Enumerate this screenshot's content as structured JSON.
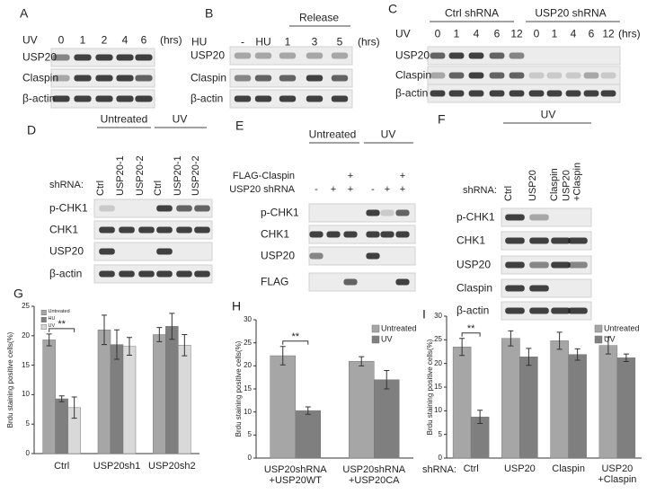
{
  "panels": [
    {
      "label": "A",
      "treatment": "UV",
      "columns": [
        "0",
        "1",
        "2",
        "4",
        "6"
      ],
      "unit": "(hrs)",
      "rows": [
        "USP20",
        "Claspin",
        "β-actin"
      ]
    },
    {
      "label": "B",
      "treatment": "HU",
      "group": "Release",
      "columns": [
        "-",
        "HU",
        "1",
        "3",
        "5"
      ],
      "unit": "(hrs)",
      "rows": [
        "USP20",
        "Claspin",
        "β-actin"
      ]
    },
    {
      "label": "C",
      "treatment": "UV",
      "groups": [
        "Ctrl shRNA",
        "USP20 shRNA"
      ],
      "columns": [
        "0",
        "1",
        "4",
        "6",
        "12",
        "0",
        "1",
        "4",
        "6",
        "12"
      ],
      "unit": "(hrs)",
      "rows": [
        "USP20",
        "Claspin",
        "β-actin"
      ]
    },
    {
      "label": "D",
      "groups": [
        "Untreated",
        "UV"
      ],
      "row_header": "shRNA:",
      "columns": [
        "Ctrl",
        "USP20-1",
        "USP20-2",
        "Ctrl",
        "USP20-1",
        "USP20-2"
      ],
      "rows": [
        "p-CHK1",
        "CHK1",
        "USP20",
        "β-actin"
      ]
    },
    {
      "label": "E",
      "groups": [
        "Untreated",
        "UV"
      ],
      "conditions": [
        {
          "name": "FLAG-Claspin",
          "marks": [
            "+",
            "+"
          ]
        },
        {
          "name": "USP20 shRNA",
          "marks": [
            "-",
            "+",
            "+",
            "-",
            "+",
            "+"
          ]
        }
      ],
      "rows": [
        "p-CHK1",
        "CHK1",
        "USP20",
        "FLAG"
      ]
    },
    {
      "label": "F",
      "groups": [
        "UV"
      ],
      "row_header": "shRNA:",
      "columns": [
        "Ctrl",
        "USP20",
        "Claspin",
        "USP20\n+Claspin"
      ],
      "rows": [
        "p-CHK1",
        "CHK1",
        "USP20",
        "Claspin",
        "β-actin"
      ]
    }
  ],
  "chart_data": [
    {
      "type": "bar",
      "label": "G",
      "y_label": "Brdu staining positive cells(%)",
      "categories": [
        "Ctrl",
        "USP20sh1",
        "USP20sh2"
      ],
      "series": [
        {
          "name": "Untreated",
          "color": "#a6a6a6",
          "values": [
            19.3,
            21,
            20.2
          ],
          "errors": [
            1,
            2.5,
            1.2
          ]
        },
        {
          "name": "HU",
          "color": "#7f7f7f",
          "values": [
            9.3,
            18.5,
            21.6
          ],
          "errors": [
            0.5,
            2.5,
            2.2
          ]
        },
        {
          "name": "UV",
          "color": "#d9d9d9",
          "values": [
            7.8,
            18.2,
            18.4
          ],
          "errors": [
            1.8,
            1.5,
            1.8
          ]
        }
      ],
      "ylim": [
        0,
        25
      ],
      "yticks": [
        0,
        5,
        10,
        15,
        20,
        25
      ],
      "legend": "upper left",
      "annotation": "**"
    },
    {
      "type": "bar",
      "label": "H",
      "y_label": "Brdu staining positive cells(%)",
      "categories": [
        "USP20shRNA\n+USP20WT",
        "USP20shRNA\n+USP20CA"
      ],
      "series": [
        {
          "name": "Untreated",
          "color": "#a6a6a6",
          "values": [
            22.2,
            21
          ],
          "errors": [
            2,
            1
          ]
        },
        {
          "name": "UV",
          "color": "#7f7f7f",
          "values": [
            10.3,
            17
          ],
          "errors": [
            0.8,
            2
          ]
        }
      ],
      "ylim": [
        0,
        30
      ],
      "yticks": [
        0,
        5,
        10,
        15,
        20,
        25,
        30
      ],
      "legend": "upper right",
      "annotation": "**"
    },
    {
      "type": "bar",
      "label": "I",
      "y_label": "Brdu staining positive cells(%)",
      "x_prefix": "shRNA:",
      "categories": [
        "Ctrl",
        "USP20",
        "Claspin",
        "USP20\n+Claspin"
      ],
      "series": [
        {
          "name": "Untreated",
          "color": "#a6a6a6",
          "values": [
            23.5,
            25.3,
            24.8,
            23.8
          ],
          "errors": [
            1.8,
            1.6,
            1.8,
            1.8
          ]
        },
        {
          "name": "UV",
          "color": "#7f7f7f",
          "values": [
            8.7,
            21.4,
            21.9,
            21.2
          ],
          "errors": [
            1.4,
            1.8,
            1.2,
            0.8
          ]
        }
      ],
      "ylim": [
        0,
        30
      ],
      "yticks": [
        0,
        5,
        10,
        15,
        20,
        25,
        30
      ],
      "legend": "upper right",
      "annotation": "**"
    }
  ]
}
